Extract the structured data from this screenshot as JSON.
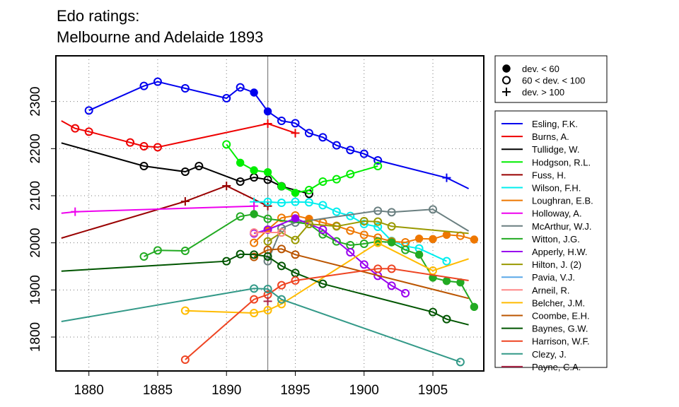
{
  "chart_data": {
    "type": "line",
    "title_lines": [
      "Edo ratings:",
      "Melbourne and Adelaide 1893"
    ],
    "xlabel": "",
    "ylabel": "",
    "xlim": [
      1877.6,
      1908.7
    ],
    "ylim": [
      1728,
      2397
    ],
    "x_ticks": [
      1880,
      1885,
      1890,
      1895,
      1900,
      1905
    ],
    "y_ticks": [
      1800,
      1900,
      2000,
      2100,
      2200,
      2300
    ],
    "grid": "dotted",
    "reference_line_x": 1893,
    "marker_legend": {
      "placement": "top-right",
      "entries": [
        {
          "marker": "dot",
          "label": "dev. < 60"
        },
        {
          "marker": "circle",
          "label": "60 < dev. < 100"
        },
        {
          "marker": "plus",
          "label": "dev. > 100"
        }
      ]
    },
    "legend_placement": "right",
    "series": [
      {
        "name": "Esling, F.K.",
        "color": "#0000ee",
        "points": [
          [
            1880,
            2281,
            "o"
          ],
          [
            1884,
            2333,
            "o"
          ],
          [
            1885,
            2342,
            "o"
          ],
          [
            1887,
            2328,
            "o"
          ],
          [
            1890,
            2307,
            "o"
          ],
          [
            1891,
            2330,
            "o"
          ],
          [
            1892,
            2319,
            "d"
          ],
          [
            1893,
            2279,
            "d"
          ],
          [
            1894,
            2259,
            "o"
          ],
          [
            1895,
            2254,
            "o"
          ],
          [
            1896,
            2233,
            "o"
          ],
          [
            1897,
            2224,
            "o"
          ],
          [
            1898,
            2207,
            "o"
          ],
          [
            1899,
            2197,
            "o"
          ],
          [
            1900,
            2189,
            "o"
          ],
          [
            1901,
            2175,
            "o"
          ],
          [
            1906,
            2138,
            "p"
          ],
          [
            1907.6,
            2115,
            null
          ]
        ]
      },
      {
        "name": "Burns, A.",
        "color": "#ee0000",
        "points": [
          [
            1878,
            2259,
            null
          ],
          [
            1879,
            2243,
            "o"
          ],
          [
            1880,
            2236,
            "o"
          ],
          [
            1883,
            2213,
            "o"
          ],
          [
            1884,
            2205,
            "o"
          ],
          [
            1885,
            2203,
            "o"
          ],
          [
            1893,
            2253,
            "p"
          ],
          [
            1895,
            2233,
            "p"
          ]
        ]
      },
      {
        "name": "Tullidge, W.",
        "color": "#000000",
        "points": [
          [
            1878,
            2212,
            null
          ],
          [
            1884,
            2163,
            "o"
          ],
          [
            1887,
            2151,
            "o"
          ],
          [
            1888,
            2163,
            "o"
          ],
          [
            1891,
            2130,
            "o"
          ],
          [
            1892,
            2139,
            "o"
          ],
          [
            1893,
            2134,
            "o"
          ],
          [
            1894,
            2120,
            "o"
          ],
          [
            1896,
            2104,
            "o"
          ]
        ]
      },
      {
        "name": "Hodgson, R.L.",
        "color": "#00ee00",
        "points": [
          [
            1890,
            2209,
            "o"
          ],
          [
            1891,
            2170,
            "d"
          ],
          [
            1892,
            2154,
            "d"
          ],
          [
            1893,
            2150,
            "d"
          ],
          [
            1894,
            2120,
            "d"
          ],
          [
            1895,
            2106,
            "d"
          ],
          [
            1896,
            2112,
            "o"
          ],
          [
            1897,
            2130,
            "o"
          ],
          [
            1898,
            2135,
            "o"
          ],
          [
            1899,
            2146,
            "o"
          ],
          [
            1901,
            2163,
            "o"
          ]
        ]
      },
      {
        "name": "Fuss, H.",
        "color": "#990000",
        "points": [
          [
            1878,
            2010,
            null
          ],
          [
            1887,
            2088,
            "p"
          ],
          [
            1890,
            2121,
            "p"
          ],
          [
            1893,
            2078,
            "p"
          ]
        ]
      },
      {
        "name": "Wilson, F.H.",
        "color": "#00eeee",
        "points": [
          [
            1892,
            2087,
            "p"
          ],
          [
            1893,
            2087,
            "o"
          ],
          [
            1894,
            2085,
            "o"
          ],
          [
            1895,
            2087,
            "o"
          ],
          [
            1896,
            2086,
            "o"
          ],
          [
            1897,
            2080,
            "o"
          ],
          [
            1898,
            2066,
            "o"
          ],
          [
            1899,
            2057,
            "o"
          ],
          [
            1900,
            2040,
            "o"
          ],
          [
            1901,
            2034,
            "o"
          ],
          [
            1902,
            2004,
            "o"
          ],
          [
            1903,
            1993,
            "o"
          ],
          [
            1904,
            1988,
            "o"
          ],
          [
            1906,
            1961,
            "o"
          ]
        ]
      },
      {
        "name": "Loughran, E.B.",
        "color": "#ee7700",
        "points": [
          [
            1892,
            2000,
            "o"
          ],
          [
            1893,
            2028,
            "d"
          ],
          [
            1894,
            2053,
            "o"
          ],
          [
            1895,
            2058,
            "o"
          ],
          [
            1896,
            2051,
            "d"
          ],
          [
            1897,
            2043,
            "o"
          ],
          [
            1898,
            2036,
            "o"
          ],
          [
            1899,
            2026,
            "o"
          ],
          [
            1900,
            2017,
            "o"
          ],
          [
            1901,
            2011,
            "o"
          ],
          [
            1902,
            2003,
            "o"
          ],
          [
            1903,
            2001,
            "o"
          ],
          [
            1904,
            2009,
            "d"
          ],
          [
            1905,
            2008,
            "d"
          ],
          [
            1906,
            2017,
            "d"
          ],
          [
            1907,
            2015,
            "o"
          ],
          [
            1908,
            2007,
            "d"
          ]
        ]
      },
      {
        "name": "Holloway, A.",
        "color": "#ee00ee",
        "points": [
          [
            1878,
            2063,
            null
          ],
          [
            1879,
            2066,
            "p"
          ],
          [
            1892,
            2078,
            "p"
          ]
        ]
      },
      {
        "name": "McArthur, W.J.",
        "color": "#6a7f80",
        "points": [
          [
            1893,
            1961,
            "o"
          ],
          [
            1894,
            2031,
            "o"
          ],
          [
            1895,
            2043,
            "o"
          ],
          [
            1901,
            2068,
            "o"
          ],
          [
            1902,
            2065,
            "o"
          ],
          [
            1905,
            2071,
            "o"
          ],
          [
            1907.6,
            2025,
            null
          ]
        ]
      },
      {
        "name": "Witton, J.G.",
        "color": "#22aa22",
        "points": [
          [
            1884,
            1971,
            "o"
          ],
          [
            1885,
            1984,
            "o"
          ],
          [
            1887,
            1983,
            "o"
          ],
          [
            1891,
            2056,
            "o"
          ],
          [
            1892,
            2061,
            "d"
          ],
          [
            1893,
            2051,
            "o"
          ],
          [
            1896,
            2040,
            "o"
          ],
          [
            1897,
            2018,
            "o"
          ],
          [
            1898,
            2003,
            "o"
          ],
          [
            1899,
            1995,
            "o"
          ],
          [
            1900,
            1998,
            "o"
          ],
          [
            1901,
            2003,
            "d"
          ],
          [
            1902,
            2001,
            "d"
          ],
          [
            1903,
            1985,
            "o"
          ],
          [
            1904,
            1975,
            "d"
          ],
          [
            1905,
            1926,
            "d"
          ],
          [
            1906,
            1919,
            "d"
          ],
          [
            1907,
            1916,
            "d"
          ],
          [
            1908,
            1864,
            "d"
          ]
        ]
      },
      {
        "name": "Apperly, H.W.",
        "color": "#9900ee",
        "points": [
          [
            1892,
            2020,
            "o"
          ],
          [
            1893,
            2028,
            "o"
          ],
          [
            1895,
            2052,
            "d"
          ],
          [
            1897,
            2028,
            "o"
          ],
          [
            1899,
            1980,
            "o"
          ],
          [
            1900,
            1954,
            "o"
          ],
          [
            1901,
            1930,
            "o"
          ],
          [
            1902,
            1909,
            "o"
          ],
          [
            1903,
            1893,
            "o"
          ]
        ]
      },
      {
        "name": "Hilton, J. (2)",
        "color": "#999900",
        "points": [
          [
            1893,
            2003,
            "o"
          ],
          [
            1894,
            2022,
            "o"
          ],
          [
            1895,
            2006,
            "o"
          ],
          [
            1896,
            2040,
            "o"
          ],
          [
            1898,
            2035,
            "o"
          ],
          [
            1900,
            2046,
            "o"
          ],
          [
            1901,
            2045,
            "o"
          ],
          [
            1902,
            2035,
            "o"
          ],
          [
            1907.6,
            2020,
            null
          ]
        ]
      },
      {
        "name": "Pavia, V.J.",
        "color": "#5aa8e8",
        "points": []
      },
      {
        "name": "Arneil, R.",
        "color": "#ff8888",
        "points": [
          [
            1892,
            2022,
            "o"
          ],
          [
            1894,
            2022,
            "o"
          ]
        ]
      },
      {
        "name": "Belcher, J.M.",
        "color": "#ffbb00",
        "points": [
          [
            1887,
            1856,
            "o"
          ],
          [
            1892,
            1851,
            "o"
          ],
          [
            1893,
            1857,
            "o"
          ],
          [
            1894,
            1870,
            "o"
          ],
          [
            1901,
            2000,
            "o"
          ],
          [
            1905,
            1941,
            "o"
          ],
          [
            1907.6,
            1966,
            null
          ]
        ]
      },
      {
        "name": "Coombe, E.H.",
        "color": "#bb5500",
        "points": [
          [
            1892,
            1970,
            "o"
          ],
          [
            1893,
            1985,
            "o"
          ],
          [
            1894,
            1987,
            "o"
          ],
          [
            1895,
            1975,
            "o"
          ],
          [
            1907.6,
            1882,
            null
          ]
        ]
      },
      {
        "name": "Baynes, G.W.",
        "color": "#005500",
        "points": [
          [
            1878,
            1940,
            null
          ],
          [
            1890,
            1961,
            "o"
          ],
          [
            1891,
            1976,
            "o"
          ],
          [
            1892,
            1975,
            "o"
          ],
          [
            1893,
            1971,
            "o"
          ],
          [
            1894,
            1951,
            "o"
          ],
          [
            1895,
            1936,
            "o"
          ],
          [
            1897,
            1913,
            "o"
          ],
          [
            1905,
            1853,
            "o"
          ],
          [
            1906,
            1838,
            "o"
          ],
          [
            1907.6,
            1826,
            null
          ]
        ]
      },
      {
        "name": "Harrison, W.F.",
        "color": "#ee4422",
        "points": [
          [
            1887,
            1752,
            "o"
          ],
          [
            1892,
            1880,
            "o"
          ],
          [
            1893,
            1890,
            "o"
          ],
          [
            1894,
            1910,
            "o"
          ],
          [
            1895,
            1920,
            "o"
          ],
          [
            1901,
            1945,
            "o"
          ],
          [
            1902,
            1945,
            "o"
          ],
          [
            1907.6,
            1920,
            null
          ]
        ]
      },
      {
        "name": "Clezy, J.",
        "color": "#339988",
        "points": [
          [
            1878,
            1833,
            null
          ],
          [
            1892,
            1903,
            "o"
          ],
          [
            1893,
            1902,
            "o"
          ],
          [
            1894,
            1880,
            "o"
          ],
          [
            1907,
            1747,
            "o"
          ]
        ]
      },
      {
        "name": "Payne, C.A.",
        "color": "#aa2244",
        "points": [
          [
            1893,
            1876,
            "p"
          ]
        ]
      }
    ]
  }
}
